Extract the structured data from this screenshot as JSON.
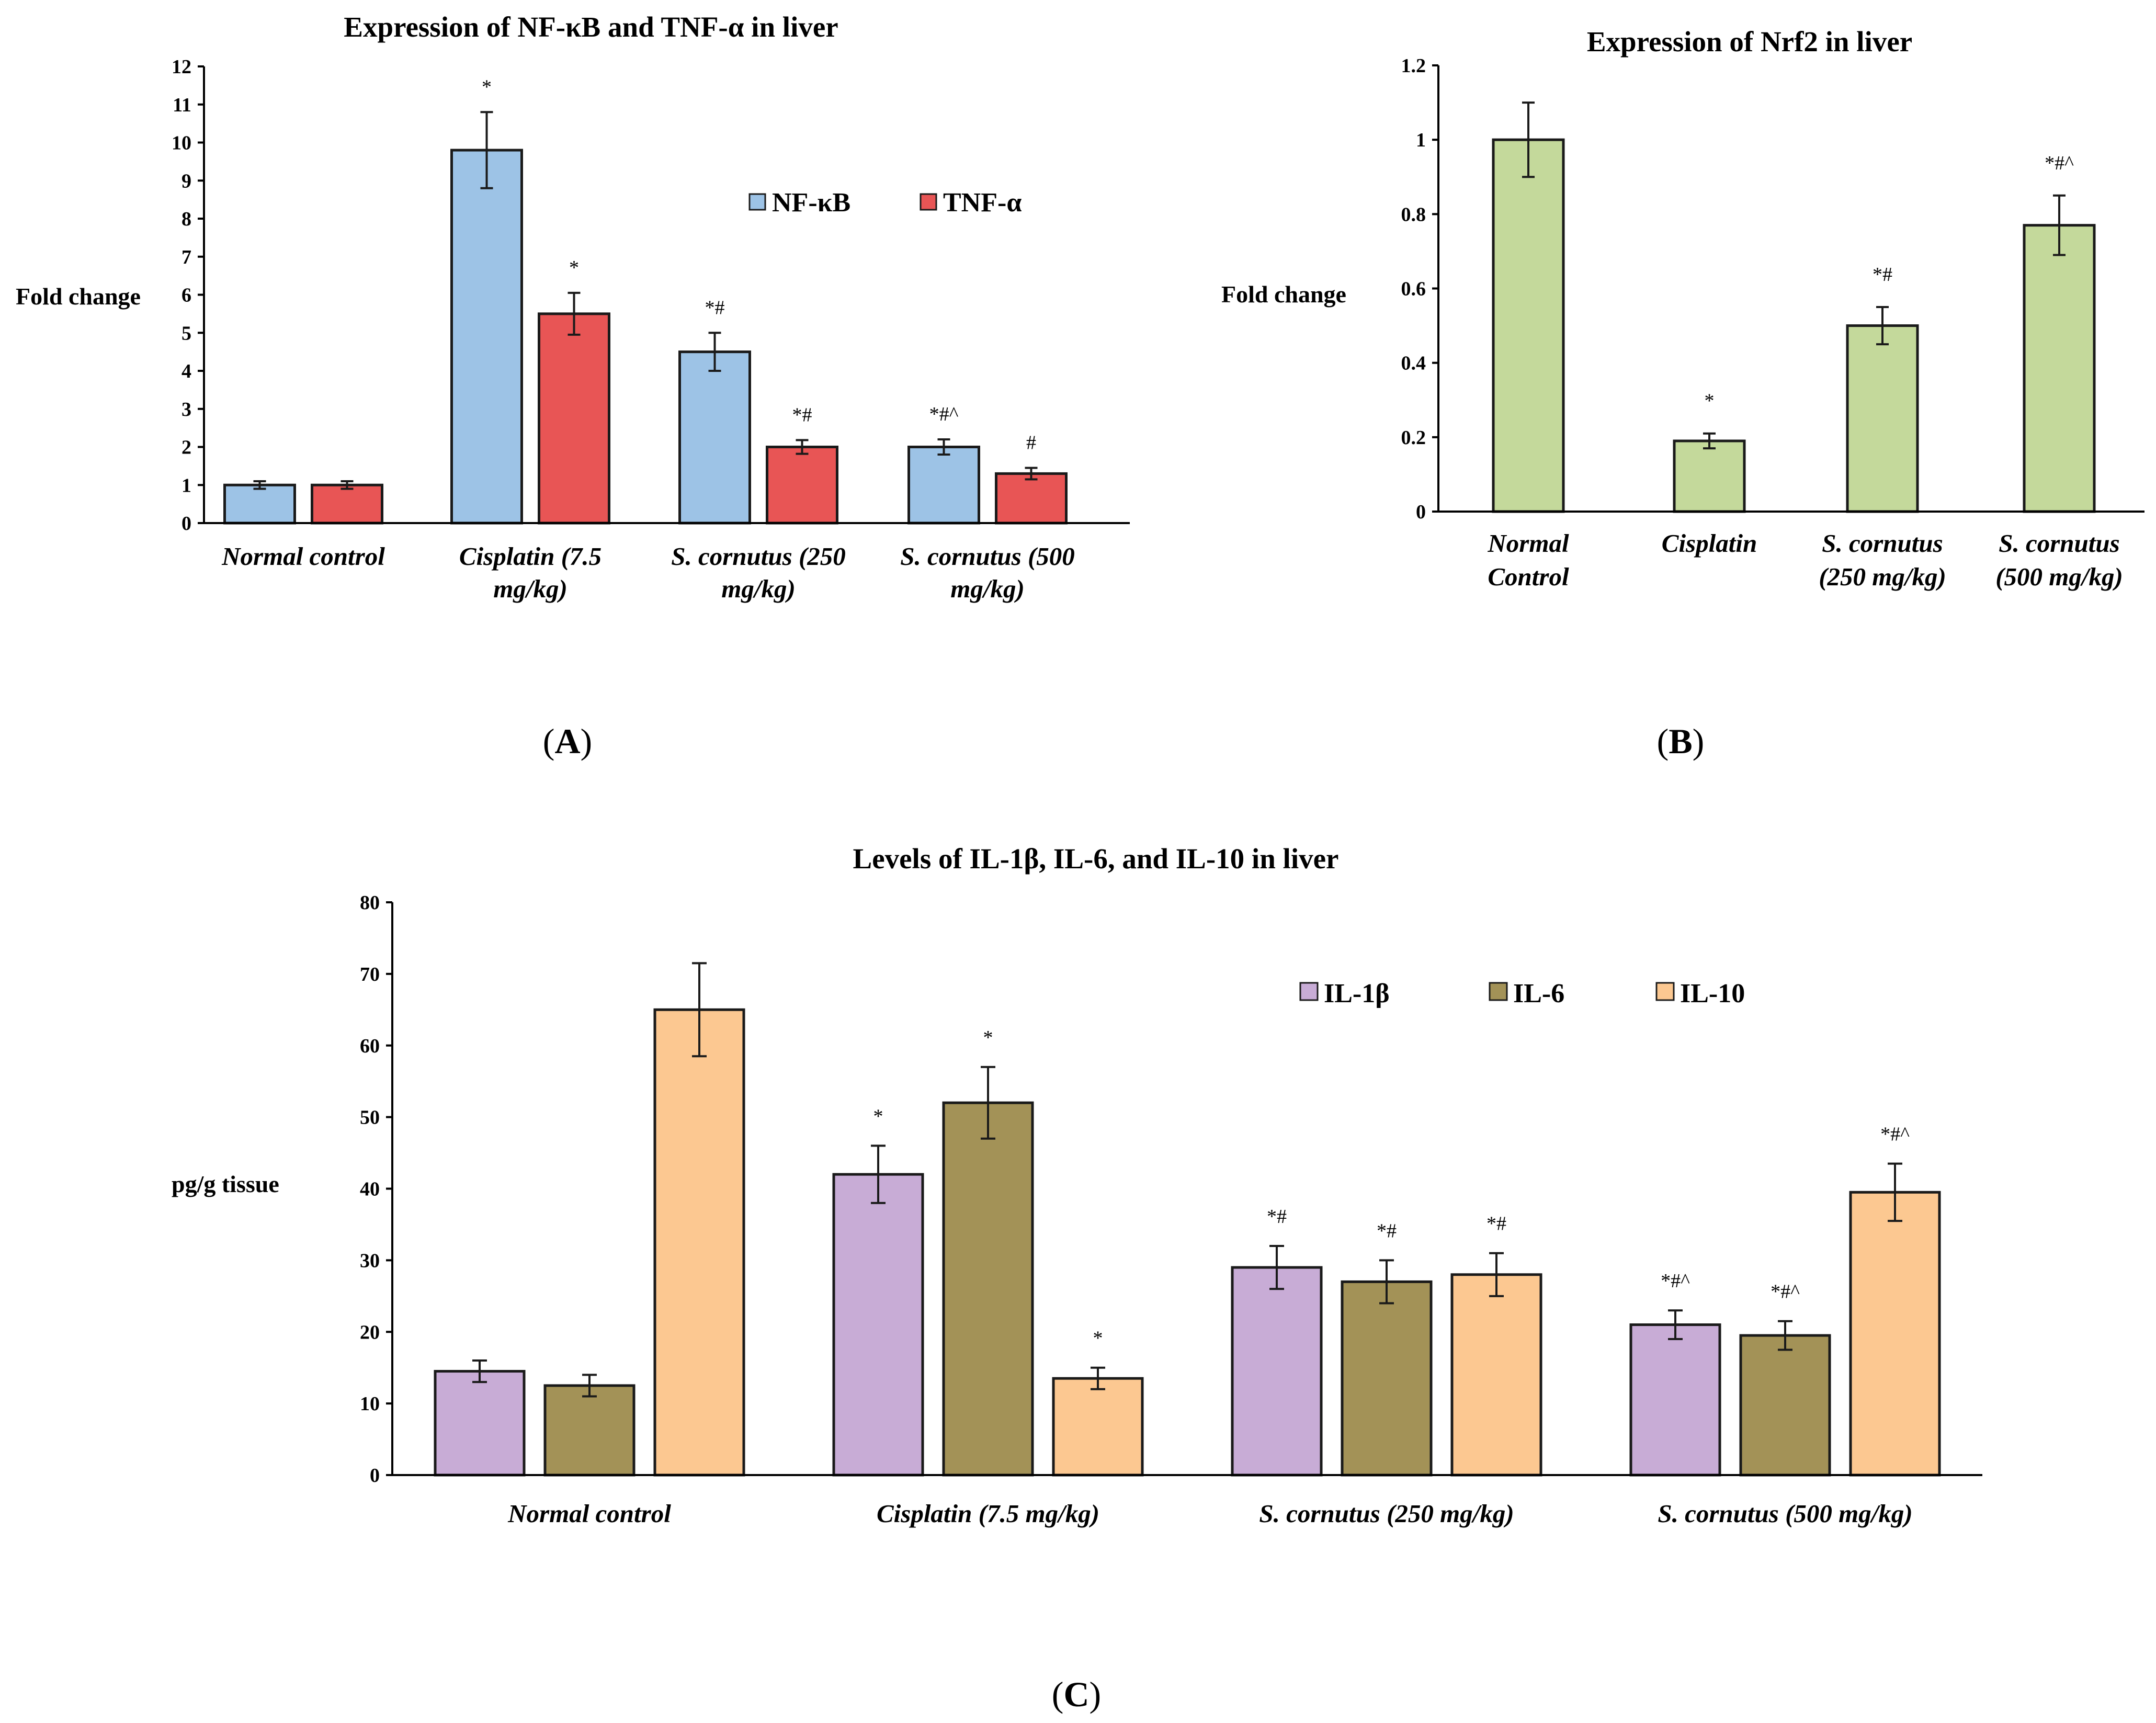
{
  "chart_data": [
    {
      "type": "bar",
      "title": "Expression of NF-κB and TNF-α in liver",
      "ylabel": "Fold change",
      "xlabel": "",
      "ylim": [
        0,
        12
      ],
      "yticks": [
        0,
        1,
        2,
        3,
        4,
        5,
        6,
        7,
        8,
        9,
        10,
        11,
        12
      ],
      "categories": [
        [
          "Normal control"
        ],
        [
          "Cisplatin (7.5",
          "mg/kg)"
        ],
        [
          "S. cornutus (250",
          "mg/kg)"
        ],
        [
          "S. cornutus (500",
          "mg/kg)"
        ]
      ],
      "series": [
        {
          "name": "NF-κB",
          "color": "#9dc3e6",
          "values": [
            1.0,
            9.8,
            4.5,
            2.0
          ],
          "errors": [
            0.1,
            1.0,
            0.5,
            0.2
          ],
          "labels": [
            "",
            "*",
            "*#",
            "*#^"
          ]
        },
        {
          "name": "TNF-α",
          "color": "#e85555",
          "values": [
            1.0,
            5.5,
            2.0,
            1.3
          ],
          "errors": [
            0.1,
            0.55,
            0.18,
            0.15
          ],
          "labels": [
            "",
            "*",
            "*#",
            "#"
          ]
        }
      ],
      "legend_position": "upper-right",
      "panel_label": "A"
    },
    {
      "type": "bar",
      "title": "Expression of Nrf2 in liver",
      "ylabel": "Fold change",
      "xlabel": "",
      "ylim": [
        0,
        1.2
      ],
      "yticks": [
        "0",
        "0.2",
        "0.4",
        "0.6",
        "0.8",
        "1",
        "1.2"
      ],
      "categories": [
        [
          "Normal",
          "Control"
        ],
        [
          "Cisplatin"
        ],
        [
          "S. cornutus",
          "(250 mg/kg)"
        ],
        [
          "S. cornutus",
          "(500 mg/kg)"
        ]
      ],
      "series": [
        {
          "name": "Nrf2",
          "color": "#c4d99b",
          "values": [
            1.0,
            0.19,
            0.5,
            0.77
          ],
          "errors": [
            0.1,
            0.02,
            0.05,
            0.08
          ],
          "labels": [
            "",
            "*",
            "*#",
            "*#^"
          ]
        }
      ],
      "panel_label": "B"
    },
    {
      "type": "bar",
      "title": "Levels of IL-1β, IL-6, and IL-10 in liver",
      "ylabel": "pg/g tissue",
      "xlabel": "",
      "ylim": [
        0,
        80
      ],
      "yticks": [
        0,
        10,
        20,
        30,
        40,
        50,
        60,
        70,
        80
      ],
      "categories": [
        [
          "Normal control"
        ],
        [
          "Cisplatin (7.5 mg/kg)"
        ],
        [
          "S. cornutus (250 mg/kg)"
        ],
        [
          "S. cornutus (500 mg/kg)"
        ]
      ],
      "series": [
        {
          "name": "IL-1β",
          "color": "#c8acd6",
          "values": [
            14.5,
            42.0,
            29.0,
            21.0
          ],
          "errors": [
            1.5,
            4.0,
            3.0,
            2.0
          ],
          "labels": [
            "",
            "*",
            "*#",
            "*#^"
          ]
        },
        {
          "name": "IL-6",
          "color": "#a39257",
          "values": [
            12.5,
            52.0,
            27.0,
            19.5
          ],
          "errors": [
            1.5,
            5.0,
            3.0,
            2.0
          ],
          "labels": [
            "",
            "*",
            "*#",
            "*#^"
          ]
        },
        {
          "name": "IL-10",
          "color": "#fcc891",
          "values": [
            65.0,
            13.5,
            28.0,
            39.5
          ],
          "errors": [
            6.5,
            1.5,
            3.0,
            4.0
          ],
          "labels": [
            "",
            "*",
            "*#",
            "*#^"
          ]
        }
      ],
      "legend_position": "upper-right",
      "panel_label": "C"
    }
  ],
  "panel_label_parts": {
    "open": "(",
    "close": ")"
  }
}
